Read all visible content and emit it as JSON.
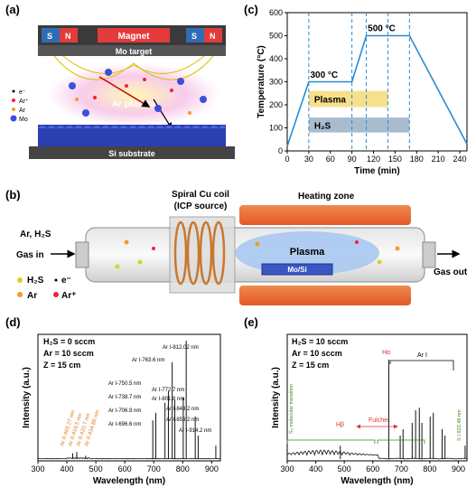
{
  "panels": {
    "a": {
      "label": "(a)",
      "magnet": "Magnet",
      "pole_s": "S",
      "pole_n": "N",
      "target": "Mo target",
      "plasma": "Ar plasma",
      "substrate": "Si substrate",
      "legend": [
        "e⁻",
        "Ar⁺",
        "Ar",
        "Mo"
      ]
    },
    "b": {
      "label": "(b)",
      "coil": "Spiral Cu coil",
      "coil_sub": "(ICP source)",
      "heating": "Heating zone",
      "gas_in_1": "Ar, H₂S",
      "gas_in_2": "Gas in",
      "gas_out": "Gas out",
      "plasma": "Plasma",
      "sample": "Mo/Si",
      "legend": [
        "H₂S",
        "e⁻",
        "Ar",
        "Ar⁺"
      ]
    },
    "c": {
      "label": "(c)",
      "t300": "300 °C",
      "t500": "500 °C",
      "plasma": "Plasma",
      "h2s": "H₂S"
    },
    "d": {
      "label": "(d)",
      "cond": [
        "H₂S = 0 sccm",
        "Ar = 10 sccm",
        "Z = 15 cm"
      ],
      "orange_labels": [
        "Ar II-465.27 nm",
        "Ar II-419.5 nm",
        "Ar II-420.7 nm",
        "Ar II-434.88 nm"
      ],
      "black_labels": [
        "Ar I-812.02 nm",
        "Ar I-763.6 nm",
        "Ar I-750.5 nm",
        "Ar I-772.7 nm",
        "Ar I-738.7 nm",
        "Ar I-801.8 nm",
        "Ar I-706.9 nm",
        "Ar I-843.2 nm",
        "Ar I-696.6 nm",
        "Ar I-853.2 nm",
        "Ar I-914.2 nm"
      ]
    },
    "e": {
      "label": "(e)",
      "cond": [
        "H₂S = 10 sccm",
        "Ar = 10 sccm",
        "Z = 15 cm"
      ],
      "s2": "S₂ molecular transition",
      "hb": "Hβ",
      "ha": "Hα",
      "fulcher": "Fulcher",
      "ari": "Ar I",
      "s923": "S I-923.48 nm"
    }
  },
  "chart_data": [
    {
      "type": "line",
      "panel": "c",
      "xlabel": "Time (min)",
      "ylabel": "Temperature (°C)",
      "xlim": [
        0,
        250
      ],
      "ylim": [
        0,
        600
      ],
      "xticks": [
        0,
        30,
        60,
        90,
        120,
        150,
        180,
        210,
        240
      ],
      "yticks": [
        0,
        100,
        200,
        300,
        400,
        500,
        600
      ],
      "series": [
        {
          "x": [
            0,
            30,
            90,
            110,
            170,
            250
          ],
          "y": [
            20,
            300,
            300,
            500,
            500,
            30
          ]
        }
      ],
      "dashed_x": [
        30,
        90,
        110,
        140,
        170
      ],
      "bands": [
        {
          "label": "Plasma",
          "x": [
            30,
            140
          ],
          "y": [
            190,
            260
          ],
          "color": "#f7e08c"
        },
        {
          "label": "H₂S",
          "x": [
            30,
            170
          ],
          "y": [
            80,
            145
          ],
          "color": "#a9bccf"
        }
      ]
    },
    {
      "type": "line",
      "panel": "d",
      "xlabel": "Wavelength (nm)",
      "ylabel": "Intensity (a.u.)",
      "xlim": [
        300,
        930
      ],
      "xticks": [
        300,
        400,
        500,
        600,
        700,
        800,
        900
      ],
      "peaks": [
        {
          "x": 420,
          "y": 0.06
        },
        {
          "x": 434,
          "y": 0.07
        },
        {
          "x": 465,
          "y": 0.04
        },
        {
          "x": 696.6,
          "y": 0.32
        },
        {
          "x": 706.9,
          "y": 0.38
        },
        {
          "x": 738.7,
          "y": 0.46
        },
        {
          "x": 750.5,
          "y": 0.55
        },
        {
          "x": 763.6,
          "y": 0.78
        },
        {
          "x": 772.7,
          "y": 0.48
        },
        {
          "x": 801.8,
          "y": 0.5
        },
        {
          "x": 812.02,
          "y": 0.95
        },
        {
          "x": 843.2,
          "y": 0.35
        },
        {
          "x": 853.2,
          "y": 0.2
        },
        {
          "x": 914.2,
          "y": 0.12
        }
      ]
    },
    {
      "type": "line",
      "panel": "e",
      "xlabel": "Wavelength (nm)",
      "ylabel": "Intensity (a.u.)",
      "xlim": [
        300,
        930
      ],
      "xticks": [
        300,
        400,
        500,
        600,
        700,
        800,
        900
      ],
      "peaks": [
        {
          "x": 486,
          "y": 0.12
        },
        {
          "x": 656,
          "y": 0.8
        },
        {
          "x": 696,
          "y": 0.2
        },
        {
          "x": 706,
          "y": 0.25
        },
        {
          "x": 738,
          "y": 0.3
        },
        {
          "x": 750,
          "y": 0.4
        },
        {
          "x": 763,
          "y": 0.42
        },
        {
          "x": 772,
          "y": 0.3
        },
        {
          "x": 801,
          "y": 0.35
        },
        {
          "x": 812,
          "y": 0.38
        },
        {
          "x": 843,
          "y": 0.25
        },
        {
          "x": 853,
          "y": 0.2
        },
        {
          "x": 923.48,
          "y": 0.12
        }
      ]
    }
  ]
}
